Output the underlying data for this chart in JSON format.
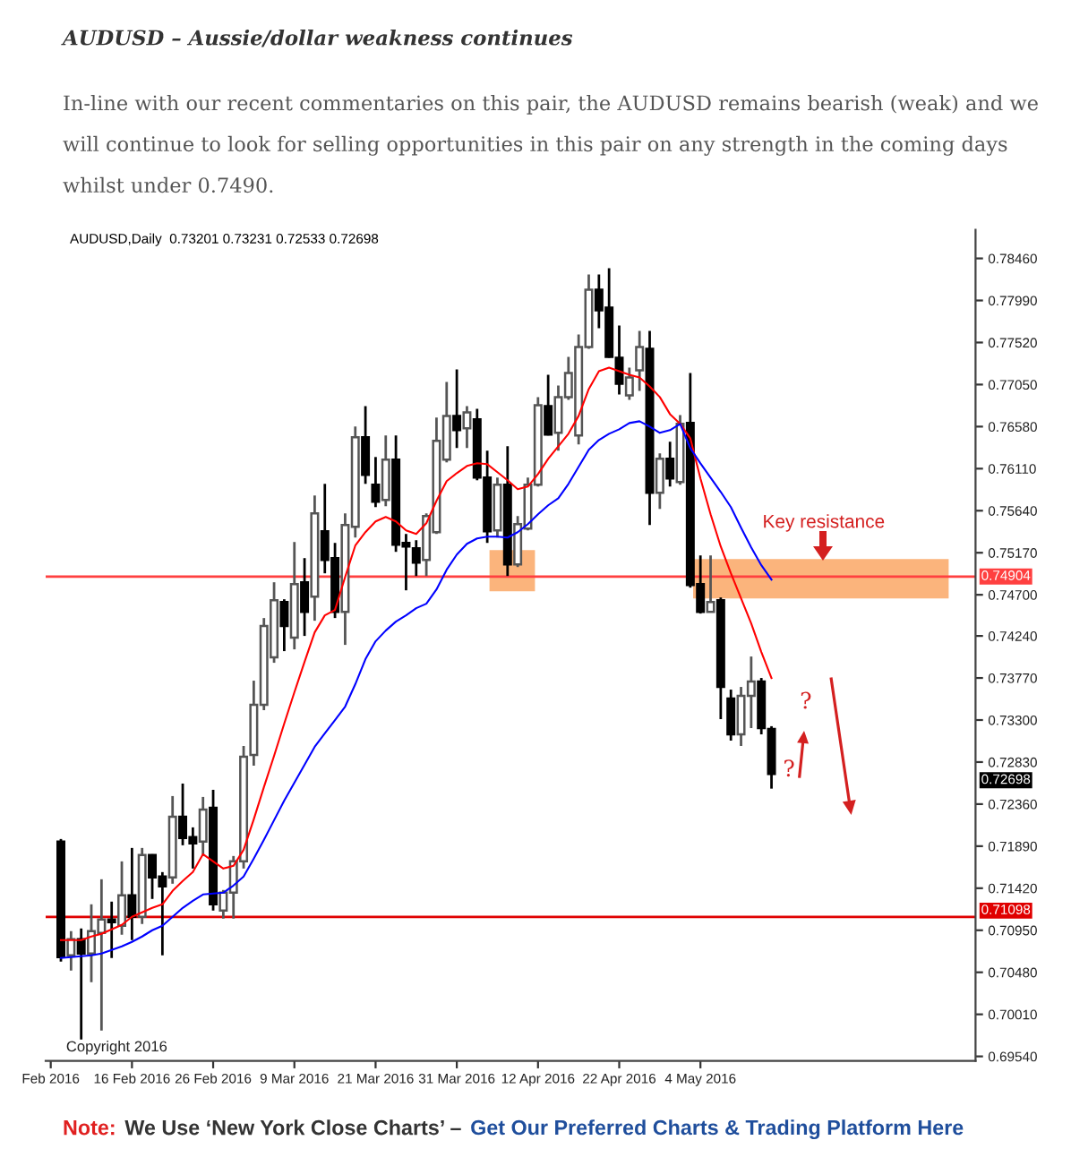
{
  "chart_data": {
    "type": "candlestick",
    "title": "AUDUSD – Aussie/dollar weakness continues",
    "subtitle": "In-line with our recent commentaries on this pair, the AUDUSD remains bearish (weak) and we will continue to look for selling opportunities in this pair on any strength in the coming days whilst under 0.7490.",
    "categories": [
      "Feb 2016",
      null,
      null,
      null,
      null,
      null,
      null,
      null,
      "16 Feb 2016",
      null,
      null,
      null,
      null,
      null,
      null,
      null,
      "26 Feb 2016",
      null,
      null,
      null,
      null,
      null,
      null,
      null,
      "9 Mar 2016",
      null,
      null,
      null,
      null,
      null,
      null,
      null,
      "21 Mar 2016",
      null,
      null,
      null,
      null,
      null,
      null,
      null,
      "31 Mar 2016",
      null,
      null,
      null,
      null,
      null,
      null,
      null,
      "12 Apr 2016",
      null,
      null,
      null,
      null,
      null,
      null,
      null,
      "22 Apr 2016",
      null,
      null,
      null,
      null,
      null,
      null,
      null,
      "4 May 2016",
      null,
      null,
      null,
      null,
      null,
      null,
      null
    ],
    "ohlc": [
      null,
      [
        0.7194,
        0.7197,
        0.706,
        0.7065
      ],
      [
        0.7067,
        0.7094,
        0.705,
        0.7085
      ],
      [
        0.7085,
        0.7097,
        0.6973,
        0.7069
      ],
      [
        0.7069,
        0.7124,
        0.7037,
        0.7094
      ],
      [
        0.7092,
        0.7152,
        0.6983,
        0.7107
      ],
      [
        0.7107,
        0.7127,
        0.7064,
        0.7104
      ],
      [
        0.71,
        0.7172,
        0.709,
        0.7134
      ],
      [
        0.7134,
        0.7187,
        0.7084,
        0.711
      ],
      [
        0.711,
        0.7187,
        0.7102,
        0.7179
      ],
      [
        0.7179,
        0.718,
        0.713,
        0.7154
      ],
      [
        0.7155,
        0.716,
        0.7067,
        0.7144
      ],
      [
        0.7154,
        0.7245,
        0.7147,
        0.7222
      ],
      [
        0.7222,
        0.7259,
        0.719,
        0.7198
      ],
      [
        0.7199,
        0.721,
        0.7164,
        0.7192
      ],
      [
        0.7194,
        0.7244,
        0.7178,
        0.723
      ],
      [
        0.7232,
        0.7252,
        0.7117,
        0.7124
      ],
      [
        0.7117,
        0.714,
        0.7108,
        0.7137
      ],
      [
        0.7137,
        0.7178,
        0.7108,
        0.7172
      ],
      [
        0.7172,
        0.7301,
        0.7164,
        0.7289
      ],
      [
        0.7291,
        0.7374,
        0.7279,
        0.7347
      ],
      [
        0.7347,
        0.7444,
        0.7341,
        0.7435
      ],
      [
        0.74,
        0.7484,
        0.7394,
        0.7464
      ],
      [
        0.7462,
        0.7465,
        0.7407,
        0.7435
      ],
      [
        0.7422,
        0.7529,
        0.7409,
        0.7482
      ],
      [
        0.7484,
        0.7511,
        0.7424,
        0.7451
      ],
      [
        0.7468,
        0.7581,
        0.7441,
        0.7561
      ],
      [
        0.7541,
        0.7594,
        0.7494,
        0.7509
      ],
      [
        0.7511,
        0.7528,
        0.7444,
        0.7451
      ],
      [
        0.7451,
        0.7561,
        0.7414,
        0.7548
      ],
      [
        0.7546,
        0.7658,
        0.7534,
        0.7646
      ],
      [
        0.7646,
        0.7681,
        0.7594,
        0.7604
      ],
      [
        0.7593,
        0.7624,
        0.7568,
        0.7574
      ],
      [
        0.7576,
        0.7648,
        0.7569,
        0.7621
      ],
      [
        0.7621,
        0.7648,
        0.7518,
        0.7526
      ],
      [
        0.7528,
        0.7538,
        0.7475,
        0.7524
      ],
      [
        0.7522,
        0.7531,
        0.7491,
        0.7506
      ],
      [
        0.7509,
        0.7561,
        0.7491,
        0.7558
      ],
      [
        0.754,
        0.7668,
        0.7538,
        0.7642
      ],
      [
        0.7621,
        0.7708,
        0.7618,
        0.767
      ],
      [
        0.767,
        0.7722,
        0.7634,
        0.7654
      ],
      [
        0.7656,
        0.7681,
        0.7634,
        0.7674
      ],
      [
        0.7666,
        0.7678,
        0.7598,
        0.7601
      ],
      [
        0.7601,
        0.7631,
        0.7528,
        0.7541
      ],
      [
        0.7542,
        0.7601,
        0.7534,
        0.7593
      ],
      [
        0.7593,
        0.7636,
        0.7491,
        0.7504
      ],
      [
        0.7504,
        0.7558,
        0.7501,
        0.7549
      ],
      [
        0.7544,
        0.7601,
        0.7542,
        0.7593
      ],
      [
        0.7593,
        0.7691,
        0.7591,
        0.7682
      ],
      [
        0.7681,
        0.7716,
        0.7648,
        0.7649
      ],
      [
        0.7651,
        0.7704,
        0.7631,
        0.7691
      ],
      [
        0.7691,
        0.7736,
        0.7688,
        0.7718
      ],
      [
        0.7648,
        0.7761,
        0.7638,
        0.7747
      ],
      [
        0.7747,
        0.7828,
        0.7745,
        0.7811
      ],
      [
        0.7811,
        0.7828,
        0.7768,
        0.7788
      ],
      [
        0.7791,
        0.7835,
        0.7735,
        0.7736
      ],
      [
        0.7735,
        0.7771,
        0.7694,
        0.7706
      ],
      [
        0.7693,
        0.7724,
        0.7688,
        0.7713
      ],
      [
        0.7721,
        0.7765,
        0.7698,
        0.7747
      ],
      [
        0.7745,
        0.7765,
        0.7548,
        0.7584
      ],
      [
        0.7584,
        0.7628,
        0.7566,
        0.7622
      ],
      [
        0.7622,
        0.7641,
        0.7591,
        0.76
      ],
      [
        0.7596,
        0.7671,
        0.7593,
        0.7661
      ],
      [
        0.7662,
        0.7718,
        0.7478,
        0.7481
      ],
      [
        0.7482,
        0.7514,
        0.7449,
        0.7451
      ],
      [
        0.7451,
        0.7514,
        0.7451,
        0.7462
      ],
      [
        0.7464,
        0.7467,
        0.7331,
        0.7367
      ],
      [
        0.7354,
        0.7364,
        0.7307,
        0.7314
      ],
      [
        0.7314,
        0.7367,
        0.7301,
        0.7357
      ],
      [
        0.7357,
        0.7401,
        0.7321,
        0.7373
      ],
      [
        0.7373,
        0.7377,
        0.7314,
        0.7321
      ],
      [
        0.73201,
        0.73231,
        0.72533,
        0.72698
      ]
    ],
    "series": [
      {
        "type": "line",
        "color": "#ff0000",
        "values": [
          null,
          0.7084,
          0.7084,
          0.7084,
          0.7088,
          0.7091,
          0.7096,
          0.7101,
          0.711,
          0.7115,
          0.712,
          0.7124,
          0.7139,
          0.715,
          0.716,
          0.718,
          0.7172,
          0.7164,
          0.7167,
          0.7185,
          0.7219,
          0.7255,
          0.729,
          0.7326,
          0.7361,
          0.7395,
          0.7428,
          0.7447,
          0.7453,
          0.749,
          0.7525,
          0.754,
          0.7552,
          0.7557,
          0.7552,
          0.7542,
          0.7538,
          0.755,
          0.7575,
          0.7597,
          0.7606,
          0.7614,
          0.7617,
          0.7616,
          0.7607,
          0.7598,
          0.7588,
          0.7591,
          0.7605,
          0.7622,
          0.7636,
          0.765,
          0.767,
          0.77,
          0.772,
          0.7724,
          0.772,
          0.7716,
          0.7713,
          0.7703,
          0.7691,
          0.7672,
          0.7661,
          0.7645,
          0.76,
          0.756,
          0.7524,
          0.7494,
          0.7466,
          0.7438,
          0.7406,
          0.7377
        ]
      },
      {
        "type": "line",
        "color": "#0000ff",
        "values": [
          null,
          0.7064,
          0.7065,
          0.7066,
          0.7067,
          0.7069,
          0.7073,
          0.7077,
          0.7082,
          0.7088,
          0.7095,
          0.71,
          0.711,
          0.712,
          0.7128,
          0.7135,
          0.7136,
          0.7137,
          0.7145,
          0.7155,
          0.7175,
          0.7196,
          0.7218,
          0.724,
          0.726,
          0.728,
          0.73,
          0.7315,
          0.733,
          0.7345,
          0.737,
          0.7398,
          0.7418,
          0.743,
          0.744,
          0.7447,
          0.7455,
          0.746,
          0.7476,
          0.7498,
          0.7515,
          0.7527,
          0.7533,
          0.7535,
          0.7535,
          0.7534,
          0.754,
          0.7549,
          0.756,
          0.757,
          0.7578,
          0.7594,
          0.7613,
          0.7632,
          0.7643,
          0.765,
          0.7655,
          0.7662,
          0.7664,
          0.7658,
          0.7651,
          0.7654,
          0.7661,
          0.7634,
          0.7617,
          0.7601,
          0.7585,
          0.7568,
          0.7545,
          0.7523,
          0.7503,
          0.7487
        ]
      }
    ],
    "ylim": [
      0.6949,
      0.7878
    ],
    "yticks": [
      {
        "value": 0.7846,
        "label": "0.78460"
      },
      {
        "value": 0.7799,
        "label": "0.77990"
      },
      {
        "value": 0.7752,
        "label": "0.77520"
      },
      {
        "value": 0.7705,
        "label": "0.77050"
      },
      {
        "value": 0.7658,
        "label": "0.76580"
      },
      {
        "value": 0.7611,
        "label": "0.76110"
      },
      {
        "value": 0.7564,
        "label": "0.75640"
      },
      {
        "value": 0.7517,
        "label": "0.75170"
      },
      {
        "value": 0.747,
        "label": "0.74700"
      },
      {
        "value": 0.7424,
        "label": "0.74240"
      },
      {
        "value": 0.7377,
        "label": "0.73770"
      },
      {
        "value": 0.733,
        "label": "0.73300"
      },
      {
        "value": 0.7283,
        "label": "0.72830"
      },
      {
        "value": 0.7236,
        "label": "0.72360"
      },
      {
        "value": 0.7189,
        "label": "0.71890"
      },
      {
        "value": 0.7142,
        "label": "0.71420"
      },
      {
        "value": 0.7095,
        "label": "0.70950"
      },
      {
        "value": 0.7048,
        "label": "0.70480"
      },
      {
        "value": 0.7001,
        "label": "0.70010"
      },
      {
        "value": 0.6954,
        "label": "0.69540"
      }
    ],
    "ref_lines": [
      {
        "axis": "y",
        "value": 0.74904,
        "label": "0.74904",
        "color": "#ff4040"
      },
      {
        "axis": "y",
        "value": 0.71098,
        "label": "0.71098",
        "color": "#e00000"
      }
    ],
    "bands": [
      {
        "axis": "y",
        "from": 0.7474,
        "to": 0.752,
        "color": "#fbb47c"
      },
      {
        "axis": "y",
        "from": 0.7466,
        "to": 0.751,
        "label": "Key resistance",
        "color": "#fbb47c"
      }
    ],
    "annotations": [
      "AUDUSD,Daily  0.73201 0.73231 0.72533 0.72698",
      "0.72698",
      "?",
      "?",
      "Copyright 2016",
      "Note:",
      "We Use ‘New York Close Charts’ –",
      "Get Our Preferred Charts & Trading Platform Here"
    ]
  }
}
